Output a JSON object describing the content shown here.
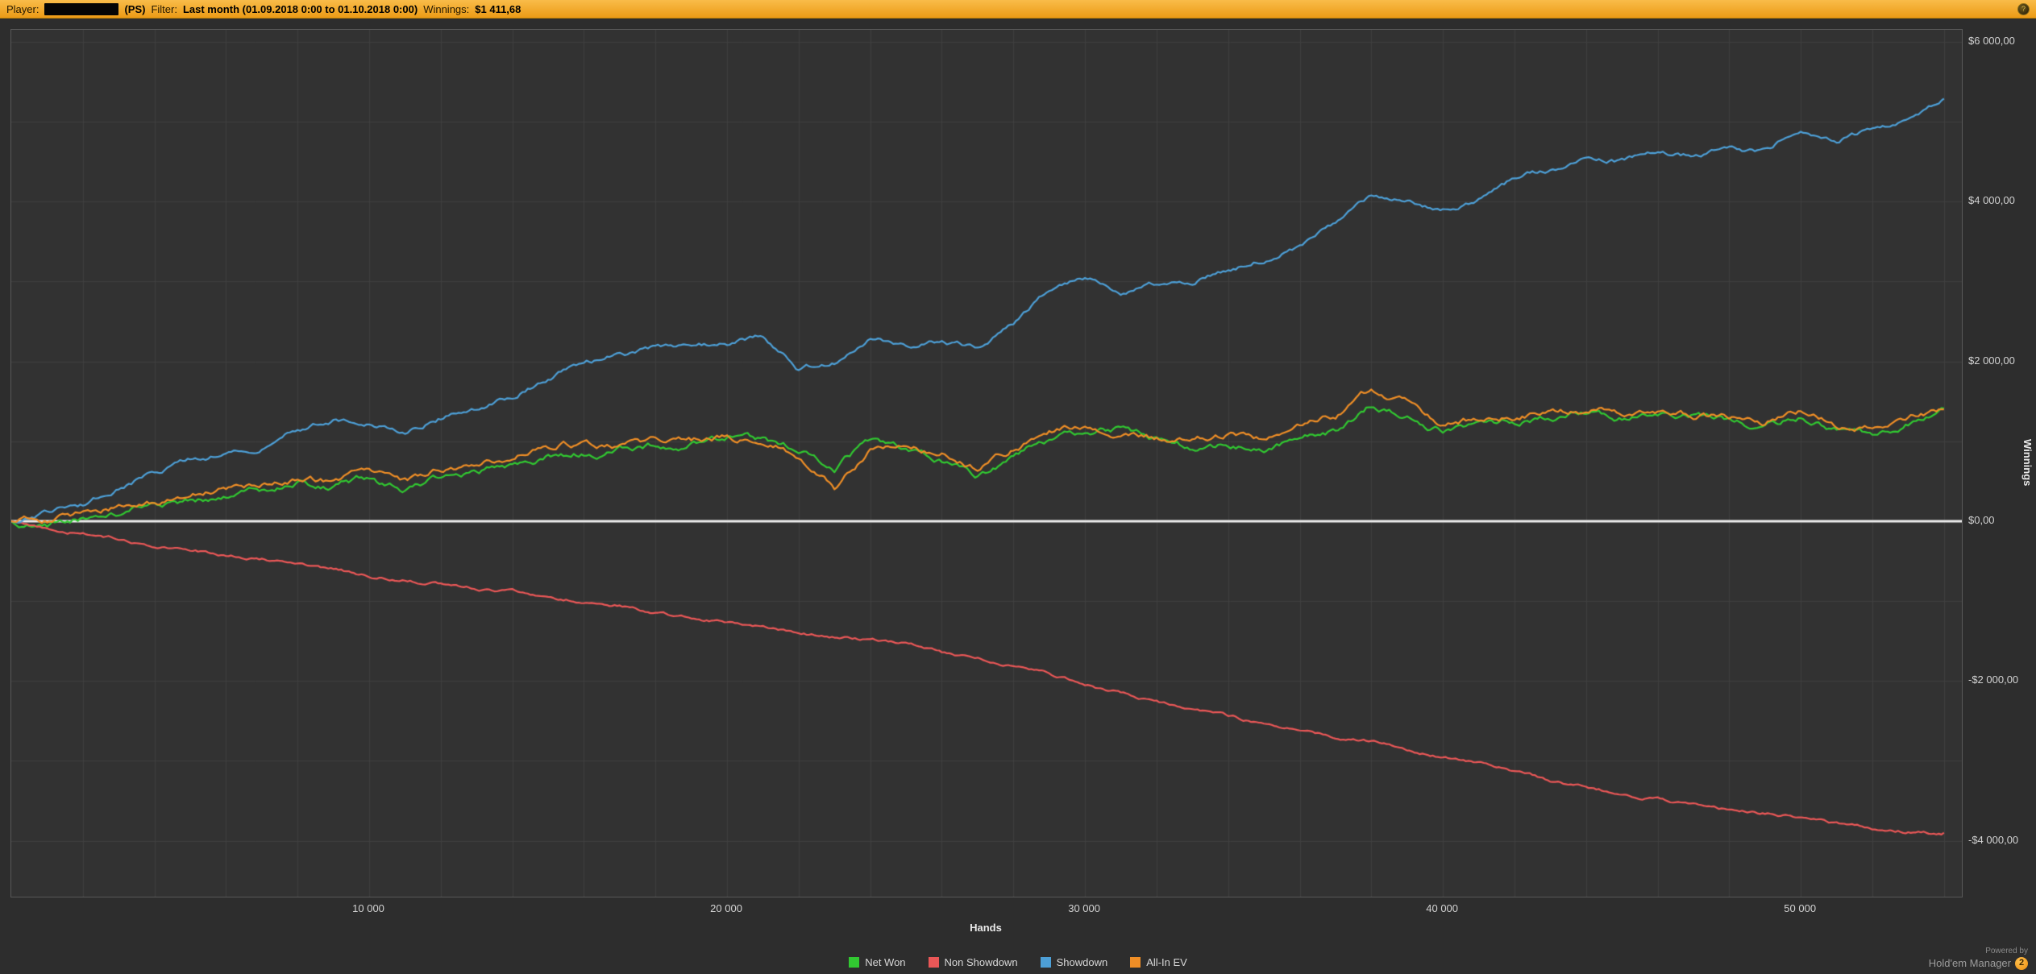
{
  "topbar": {
    "player_label": "Player:",
    "player_site": "(PS)",
    "filter_label": "Filter:",
    "filter_value": "Last month (01.09.2018 0:00 to 01.10.2018 0:00)",
    "winnings_label": "Winnings:",
    "winnings_value": "$1 411,68"
  },
  "footer": {
    "powered_by": "Powered by",
    "brand": "Hold'em Manager",
    "brand_badge": "2"
  },
  "chart_data": {
    "type": "line",
    "title": "",
    "xlabel": "Hands",
    "ylabel": "Winnings",
    "xlim": [
      0,
      54500
    ],
    "ylim": [
      -4700,
      6150
    ],
    "grid_step_x": 2000,
    "grid_step_y": 1000,
    "grid_on": true,
    "legend_position": "bottom",
    "plot_bg": "#323232",
    "grid_color": "#3f3f3f",
    "zero_line_color": "#eeeeee",
    "x_ticks": [
      {
        "value": 10000,
        "label": "10 000"
      },
      {
        "value": 20000,
        "label": "20 000"
      },
      {
        "value": 30000,
        "label": "30 000"
      },
      {
        "value": 40000,
        "label": "40 000"
      },
      {
        "value": 50000,
        "label": "50 000"
      }
    ],
    "y_ticks": [
      {
        "value": 6000,
        "label": "$6 000,00"
      },
      {
        "value": 4000,
        "label": "$4 000,00"
      },
      {
        "value": 2000,
        "label": "$2 000,00"
      },
      {
        "value": 0,
        "label": "$0,00"
      },
      {
        "value": -2000,
        "label": "-$2 000,00"
      },
      {
        "value": -4000,
        "label": "-$4 000,00"
      }
    ],
    "x": [
      0,
      1000,
      2000,
      3000,
      4000,
      5000,
      6000,
      7000,
      8000,
      9000,
      10000,
      11000,
      12000,
      13000,
      14000,
      15000,
      16000,
      17000,
      18000,
      19000,
      20000,
      21000,
      22000,
      23000,
      24000,
      25000,
      26000,
      27000,
      28000,
      29000,
      30000,
      31000,
      32000,
      33000,
      34000,
      35000,
      36000,
      37000,
      38000,
      39000,
      40000,
      41000,
      42000,
      43000,
      44000,
      45000,
      46000,
      47000,
      48000,
      49000,
      50000,
      51000,
      52000,
      53000,
      54000
    ],
    "series": [
      {
        "name": "Net Won",
        "color": "#31c831",
        "jitter": 58,
        "values": [
          0,
          -60,
          40,
          120,
          180,
          260,
          310,
          380,
          470,
          430,
          540,
          380,
          560,
          620,
          720,
          820,
          860,
          900,
          940,
          960,
          1060,
          1020,
          880,
          660,
          1000,
          930,
          790,
          560,
          800,
          1000,
          1080,
          1140,
          1000,
          920,
          960,
          870,
          1010,
          1120,
          1450,
          1300,
          1140,
          1210,
          1260,
          1310,
          1400,
          1310,
          1360,
          1310,
          1260,
          1200,
          1320,
          1140,
          1090,
          1230,
          1411.68
        ]
      },
      {
        "name": "Non Showdown",
        "color": "#ea5757",
        "jitter": 26,
        "values": [
          0,
          -80,
          -150,
          -220,
          -300,
          -360,
          -420,
          -470,
          -540,
          -600,
          -680,
          -720,
          -780,
          -830,
          -880,
          -950,
          -1000,
          -1050,
          -1150,
          -1200,
          -1260,
          -1320,
          -1400,
          -1450,
          -1490,
          -1530,
          -1640,
          -1720,
          -1800,
          -1920,
          -2050,
          -2150,
          -2260,
          -2380,
          -2450,
          -2540,
          -2620,
          -2700,
          -2760,
          -2850,
          -2950,
          -3030,
          -3120,
          -3250,
          -3330,
          -3420,
          -3480,
          -3560,
          -3620,
          -3660,
          -3700,
          -3780,
          -3850,
          -3880,
          -3900
        ]
      },
      {
        "name": "Showdown",
        "color": "#4d9fd6",
        "jitter": 44,
        "values": [
          0,
          120,
          200,
          420,
          620,
          760,
          860,
          950,
          1150,
          1270,
          1210,
          1120,
          1300,
          1420,
          1560,
          1800,
          1980,
          2090,
          2170,
          2200,
          2240,
          2320,
          1900,
          2000,
          2280,
          2220,
          2270,
          2150,
          2480,
          2870,
          3030,
          2880,
          2960,
          3010,
          3130,
          3280,
          3450,
          3700,
          4080,
          4000,
          3900,
          4040,
          4280,
          4400,
          4540,
          4500,
          4590,
          4560,
          4650,
          4620,
          4900,
          4790,
          4880,
          5000,
          5290
        ]
      },
      {
        "name": "All-In EV",
        "color": "#ef8e26",
        "jitter": 58,
        "values": [
          0,
          30,
          90,
          180,
          240,
          330,
          380,
          450,
          530,
          490,
          600,
          460,
          640,
          700,
          830,
          930,
          980,
          940,
          990,
          1000,
          1060,
          1000,
          840,
          420,
          900,
          900,
          840,
          680,
          900,
          1090,
          1190,
          1140,
          1040,
          990,
          1090,
          1040,
          1190,
          1300,
          1620,
          1480,
          1230,
          1290,
          1340,
          1390,
          1410,
          1350,
          1400,
          1340,
          1290,
          1240,
          1350,
          1190,
          1140,
          1260,
          1400
        ]
      }
    ]
  }
}
